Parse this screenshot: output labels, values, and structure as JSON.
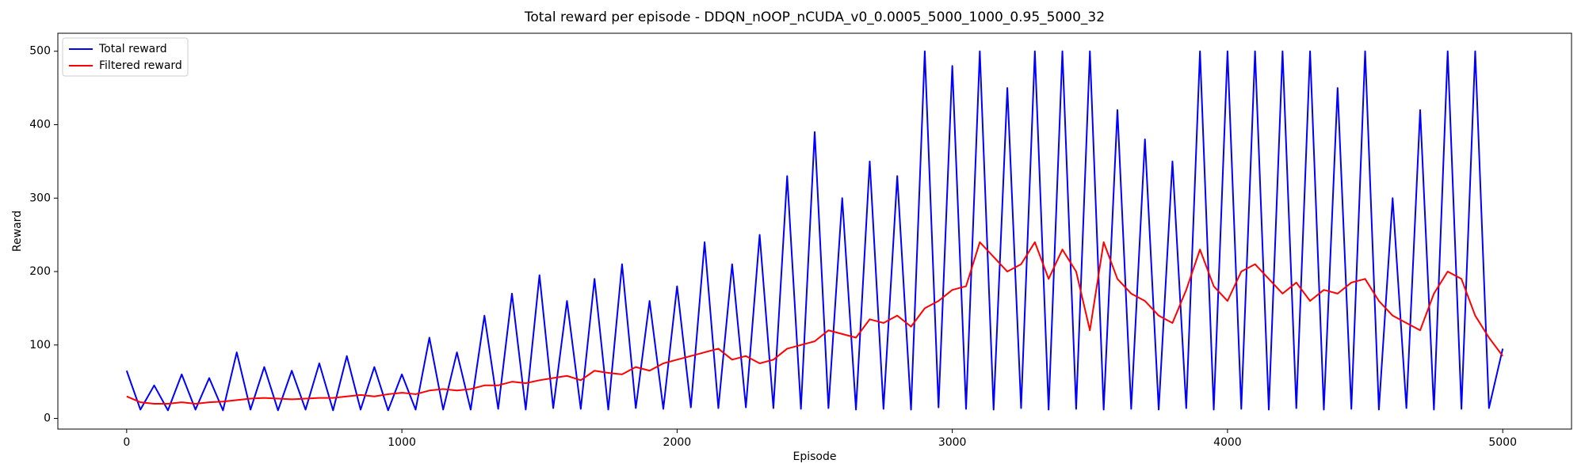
{
  "chart_data": {
    "type": "line",
    "title": "Total reward per episode - DDQN_nOOP_nCUDA_v0_0.0005_5000_1000_0.95_5000_32",
    "x_label": "Episode",
    "y_label": "Reward",
    "x": [
      0,
      50,
      100,
      150,
      200,
      250,
      300,
      350,
      400,
      450,
      500,
      550,
      600,
      650,
      700,
      750,
      800,
      850,
      900,
      950,
      1000,
      1050,
      1100,
      1150,
      1200,
      1250,
      1300,
      1350,
      1400,
      1450,
      1500,
      1550,
      1600,
      1650,
      1700,
      1750,
      1800,
      1850,
      1900,
      1950,
      2000,
      2050,
      2100,
      2150,
      2200,
      2250,
      2300,
      2350,
      2400,
      2450,
      2500,
      2550,
      2600,
      2650,
      2700,
      2750,
      2800,
      2850,
      2900,
      2950,
      3000,
      3050,
      3100,
      3150,
      3200,
      3250,
      3300,
      3350,
      3400,
      3450,
      3500,
      3550,
      3600,
      3650,
      3700,
      3750,
      3800,
      3850,
      3900,
      3950,
      4000,
      4050,
      4100,
      4150,
      4200,
      4250,
      4300,
      4350,
      4400,
      4450,
      4500,
      4550,
      4600,
      4650,
      4700,
      4750,
      4800,
      4850,
      4900,
      4950,
      5000
    ],
    "series": [
      {
        "name": "Total reward",
        "color": "#0000ff",
        "values": [
          65,
          12,
          45,
          11,
          60,
          12,
          55,
          11,
          90,
          12,
          70,
          11,
          65,
          12,
          75,
          11,
          85,
          12,
          70,
          11,
          60,
          12,
          110,
          12,
          90,
          12,
          140,
          13,
          170,
          12,
          195,
          14,
          160,
          13,
          190,
          12,
          210,
          14,
          160,
          13,
          180,
          15,
          240,
          14,
          210,
          15,
          250,
          14,
          330,
          13,
          390,
          14,
          300,
          12,
          350,
          13,
          330,
          12,
          500,
          15,
          480,
          13,
          500,
          12,
          450,
          14,
          500,
          12,
          500,
          13,
          500,
          12,
          420,
          13,
          380,
          12,
          350,
          14,
          500,
          12,
          500,
          13,
          500,
          12,
          500,
          14,
          500,
          12,
          450,
          13,
          500,
          12,
          300,
          14,
          420,
          12,
          500,
          13,
          500,
          14,
          95
        ]
      },
      {
        "name": "Filtered reward",
        "color": "#ff0000",
        "values": [
          30,
          22,
          20,
          20,
          22,
          20,
          22,
          23,
          25,
          27,
          28,
          27,
          26,
          27,
          28,
          28,
          30,
          32,
          30,
          33,
          35,
          33,
          38,
          40,
          38,
          40,
          45,
          45,
          50,
          48,
          52,
          55,
          58,
          52,
          65,
          62,
          60,
          70,
          65,
          75,
          80,
          85,
          90,
          95,
          80,
          85,
          75,
          80,
          95,
          100,
          105,
          120,
          115,
          110,
          135,
          130,
          140,
          125,
          150,
          160,
          175,
          180,
          240,
          220,
          200,
          210,
          240,
          190,
          230,
          200,
          120,
          240,
          190,
          170,
          160,
          140,
          130,
          175,
          230,
          180,
          160,
          200,
          210,
          190,
          170,
          185,
          160,
          175,
          170,
          185,
          190,
          160,
          140,
          130,
          120,
          170,
          200,
          190,
          140,
          110,
          85
        ]
      }
    ],
    "xlim": [
      -250,
      5250
    ],
    "xticks": [
      0,
      1000,
      2000,
      3000,
      4000,
      5000
    ],
    "ylim": [
      -14.5,
      524.5
    ],
    "yticks": [
      0,
      100,
      200,
      300,
      400,
      500
    ],
    "legend": "upper left"
  }
}
